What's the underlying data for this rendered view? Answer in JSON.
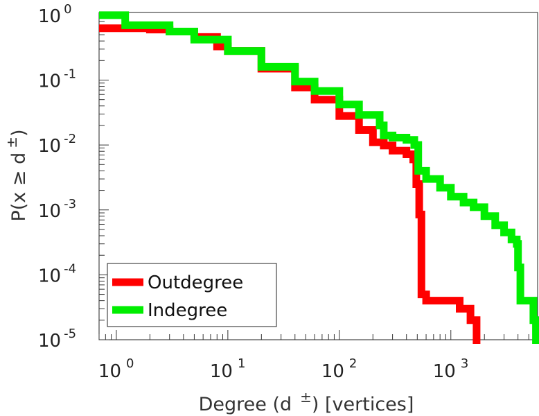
{
  "chart_data": {
    "type": "line",
    "title": "",
    "xscale": "log",
    "yscale": "log",
    "xlim": [
      0.7,
      6000
    ],
    "ylim": [
      1e-05,
      1.1
    ],
    "xlabel": {
      "main": "Degree (d",
      "superscript": "±",
      "suffix": ") [vertices]"
    },
    "ylabel": {
      "main": "P(x ≥ d",
      "superscript": "±",
      "suffix": ")"
    },
    "x_ticks": [
      {
        "base": "10",
        "exp": "0",
        "value": 1
      },
      {
        "base": "10",
        "exp": "1",
        "value": 10
      },
      {
        "base": "10",
        "exp": "2",
        "value": 100
      },
      {
        "base": "10",
        "exp": "3",
        "value": 1000
      }
    ],
    "y_ticks": [
      {
        "base": "10",
        "exp": "0",
        "value": 1
      },
      {
        "base": "10",
        "exp": "-1",
        "value": 0.1
      },
      {
        "base": "10",
        "exp": "-2",
        "value": 0.01
      },
      {
        "base": "10",
        "exp": "-3",
        "value": 0.001
      },
      {
        "base": "10",
        "exp": "-4",
        "value": 0.0001
      },
      {
        "base": "10",
        "exp": "-5",
        "value": 1e-05
      }
    ],
    "legend": {
      "position": "bottom-left"
    },
    "series": [
      {
        "name": "Outdegree",
        "color": "#ff0000",
        "points": [
          [
            0.7,
            0.63
          ],
          [
            1,
            0.63
          ],
          [
            2,
            0.6
          ],
          [
            3,
            0.56
          ],
          [
            5,
            0.46
          ],
          [
            8,
            0.33
          ],
          [
            10,
            0.28
          ],
          [
            20,
            0.15
          ],
          [
            40,
            0.077
          ],
          [
            60,
            0.05
          ],
          [
            100,
            0.028
          ],
          [
            150,
            0.017
          ],
          [
            200,
            0.011
          ],
          [
            250,
            0.0098
          ],
          [
            300,
            0.0082
          ],
          [
            400,
            0.0072
          ],
          [
            460,
            0.006
          ],
          [
            490,
            0.0025
          ],
          [
            520,
            0.00085
          ],
          [
            545,
            5e-05
          ],
          [
            600,
            4e-05
          ],
          [
            1000,
            4e-05
          ],
          [
            1200,
            3e-05
          ],
          [
            1500,
            2e-05
          ],
          [
            1700,
            1e-05
          ]
        ]
      },
      {
        "name": "Indegree",
        "color": "#00ee00",
        "points": [
          [
            0.7,
            1.0
          ],
          [
            1,
            1.0
          ],
          [
            1.2,
            0.7
          ],
          [
            3,
            0.56
          ],
          [
            5,
            0.42
          ],
          [
            10,
            0.28
          ],
          [
            20,
            0.16
          ],
          [
            40,
            0.095
          ],
          [
            60,
            0.068
          ],
          [
            100,
            0.042
          ],
          [
            150,
            0.029
          ],
          [
            230,
            0.02
          ],
          [
            250,
            0.014
          ],
          [
            300,
            0.013
          ],
          [
            400,
            0.012
          ],
          [
            470,
            0.01
          ],
          [
            510,
            0.004
          ],
          [
            600,
            0.003
          ],
          [
            800,
            0.0022
          ],
          [
            1000,
            0.0016
          ],
          [
            1300,
            0.0013
          ],
          [
            1600,
            0.0011
          ],
          [
            2000,
            0.0008
          ],
          [
            2500,
            0.00058
          ],
          [
            3000,
            0.00045
          ],
          [
            3500,
            0.00035
          ],
          [
            3900,
            0.0003
          ],
          [
            4000,
            0.00013
          ],
          [
            4200,
            4e-05
          ],
          [
            5000,
            4e-05
          ],
          [
            5500,
            2e-05
          ],
          [
            5800,
            1e-05
          ]
        ]
      }
    ]
  }
}
